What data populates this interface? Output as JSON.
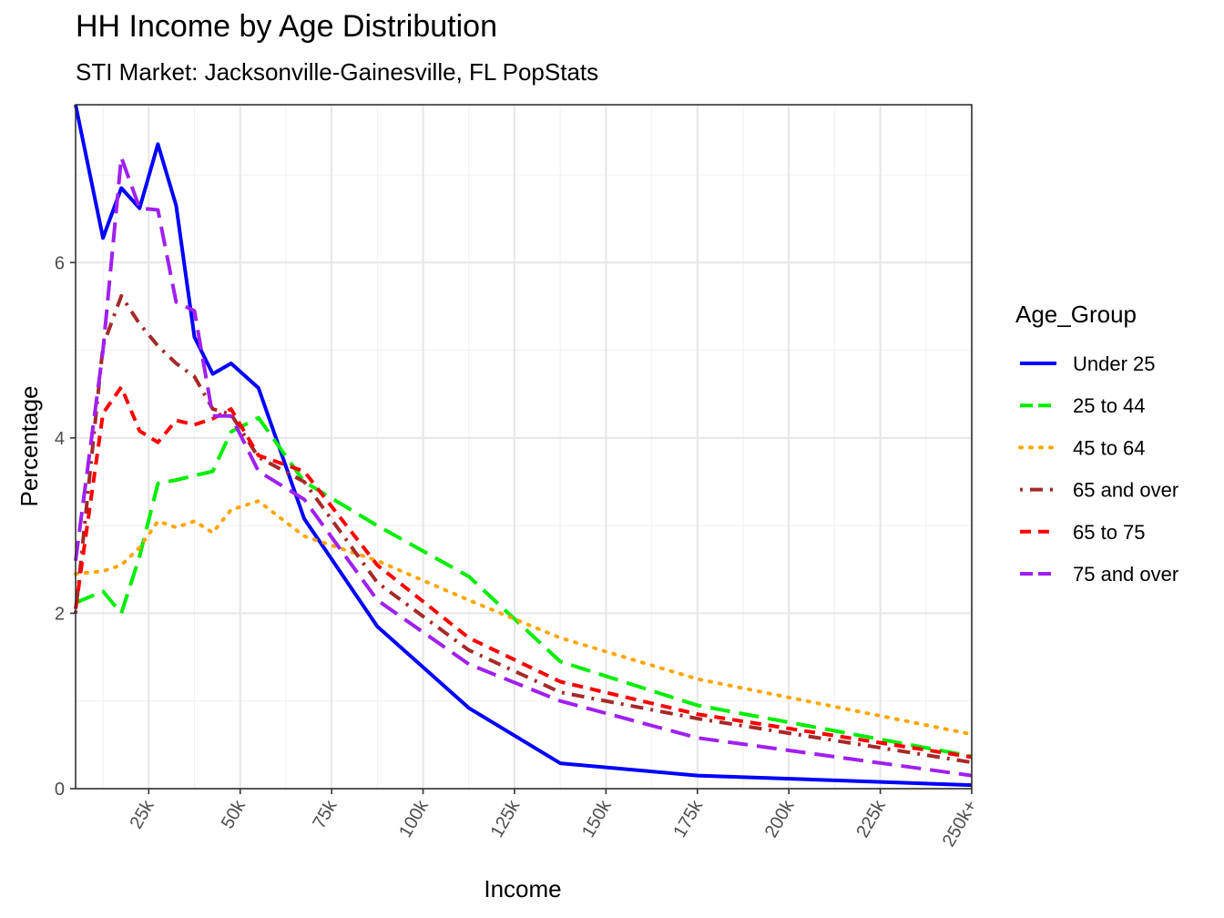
{
  "chart_data": {
    "type": "line",
    "title": "HH Income by Age Distribution",
    "subtitle": "STI Market: Jacksonville-Gainesville, FL PopStats",
    "xlabel": "Income",
    "ylabel": "Percentage",
    "xlim": [
      5,
      250
    ],
    "ylim": [
      0,
      7.8
    ],
    "x_ticks": [
      {
        "value": 25,
        "label": "25k"
      },
      {
        "value": 50,
        "label": "50k"
      },
      {
        "value": 75,
        "label": "75k"
      },
      {
        "value": 100,
        "label": "100k"
      },
      {
        "value": 125,
        "label": "125k"
      },
      {
        "value": 150,
        "label": "150k"
      },
      {
        "value": 175,
        "label": "175k"
      },
      {
        "value": 200,
        "label": "200k"
      },
      {
        "value": 225,
        "label": "225k"
      },
      {
        "value": 250,
        "label": "250k+"
      }
    ],
    "y_ticks": [
      0,
      2,
      4,
      6
    ],
    "grid": true,
    "legend_title": "Age_Group",
    "legend_position": "right",
    "series": [
      {
        "name": "Under 25",
        "color": "#0000ff",
        "dash": "solid",
        "x": [
          5,
          12.5,
          17.5,
          22.5,
          27.5,
          32.5,
          37.5,
          42.5,
          47.5,
          55,
          67.5,
          87.5,
          112.5,
          137.5,
          175,
          250
        ],
        "y": [
          7.8,
          6.28,
          6.85,
          6.62,
          7.35,
          6.65,
          5.15,
          4.73,
          4.85,
          4.57,
          3.08,
          1.85,
          0.92,
          0.29,
          0.15,
          0.04
        ]
      },
      {
        "name": "25 to 44",
        "color": "#00ee00",
        "dash": "longdash",
        "x": [
          5,
          12.5,
          17.5,
          22.5,
          27.5,
          32.5,
          37.5,
          42.5,
          47.5,
          55,
          67.5,
          87.5,
          112.5,
          137.5,
          175,
          250
        ],
        "y": [
          2.12,
          2.25,
          2.0,
          2.65,
          3.48,
          3.52,
          3.57,
          3.62,
          4.07,
          4.23,
          3.5,
          3.0,
          2.42,
          1.45,
          0.95,
          0.37
        ]
      },
      {
        "name": "45 to 64",
        "color": "#ffa500",
        "dash": "dotted",
        "x": [
          5,
          12.5,
          17.5,
          22.5,
          27.5,
          32.5,
          37.5,
          42.5,
          47.5,
          55,
          67.5,
          87.5,
          112.5,
          137.5,
          175,
          250
        ],
        "y": [
          2.45,
          2.48,
          2.55,
          2.75,
          3.05,
          2.98,
          3.05,
          2.92,
          3.18,
          3.28,
          2.88,
          2.6,
          2.15,
          1.72,
          1.25,
          0.62
        ]
      },
      {
        "name": "65 and over",
        "color": "#a52a2a",
        "dash": "dotdash",
        "x": [
          5,
          12.5,
          17.5,
          22.5,
          27.5,
          32.5,
          37.5,
          42.5,
          47.5,
          55,
          67.5,
          87.5,
          112.5,
          137.5,
          175,
          250
        ],
        "y": [
          2.0,
          5.05,
          5.62,
          5.3,
          5.05,
          4.85,
          4.7,
          4.33,
          4.27,
          3.78,
          3.5,
          2.35,
          1.58,
          1.1,
          0.8,
          0.3
        ]
      },
      {
        "name": "65 to 75",
        "color": "#ff0000",
        "dash": "dashed",
        "x": [
          5,
          12.5,
          17.5,
          22.5,
          27.5,
          32.5,
          37.5,
          42.5,
          47.5,
          55,
          67.5,
          87.5,
          112.5,
          137.5,
          175,
          250
        ],
        "y": [
          2.05,
          4.28,
          4.58,
          4.08,
          3.95,
          4.2,
          4.15,
          4.22,
          4.33,
          3.8,
          3.62,
          2.55,
          1.72,
          1.22,
          0.85,
          0.36
        ]
      },
      {
        "name": "75 and over",
        "color": "#a020f0",
        "dash": "longdash",
        "x": [
          5,
          12.5,
          17.5,
          22.5,
          27.5,
          32.5,
          37.5,
          42.5,
          47.5,
          55,
          67.5,
          87.5,
          112.5,
          137.5,
          175,
          250
        ],
        "y": [
          2.6,
          5.0,
          7.2,
          6.62,
          6.6,
          5.55,
          5.45,
          4.25,
          4.25,
          3.62,
          3.3,
          2.15,
          1.42,
          1.0,
          0.58,
          0.15
        ]
      }
    ]
  }
}
